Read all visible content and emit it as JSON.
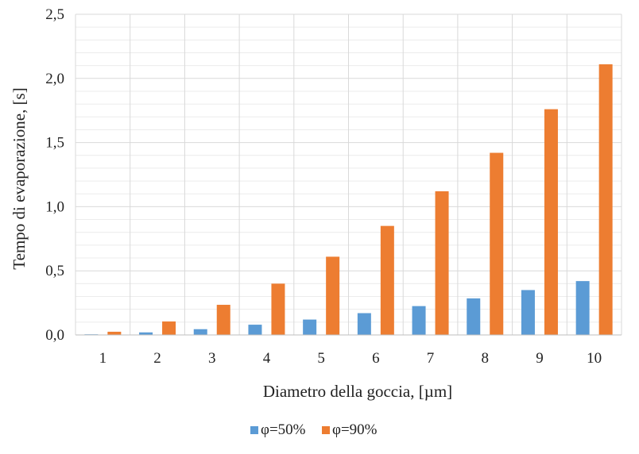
{
  "chart_data": {
    "type": "bar",
    "categories": [
      "1",
      "2",
      "3",
      "4",
      "5",
      "6",
      "7",
      "8",
      "9",
      "10"
    ],
    "series": [
      {
        "name": "φ=50%",
        "color": "#5b9bd5",
        "values": [
          0.005,
          0.02,
          0.045,
          0.08,
          0.12,
          0.17,
          0.225,
          0.285,
          0.35,
          0.42
        ]
      },
      {
        "name": "φ=90%",
        "color": "#ed7d31",
        "values": [
          0.025,
          0.105,
          0.235,
          0.4,
          0.61,
          0.85,
          1.12,
          1.42,
          1.76,
          2.11
        ]
      }
    ],
    "xlabel": "Diametro della goccia, [µm]",
    "ylabel": "Tempo di evaporazione, [s]",
    "ylim": [
      0,
      2.5
    ],
    "yticks": [
      "0,0",
      "0,5",
      "1,0",
      "1,5",
      "2,0",
      "2,5"
    ],
    "grid": true,
    "legend_position": "bottom"
  }
}
